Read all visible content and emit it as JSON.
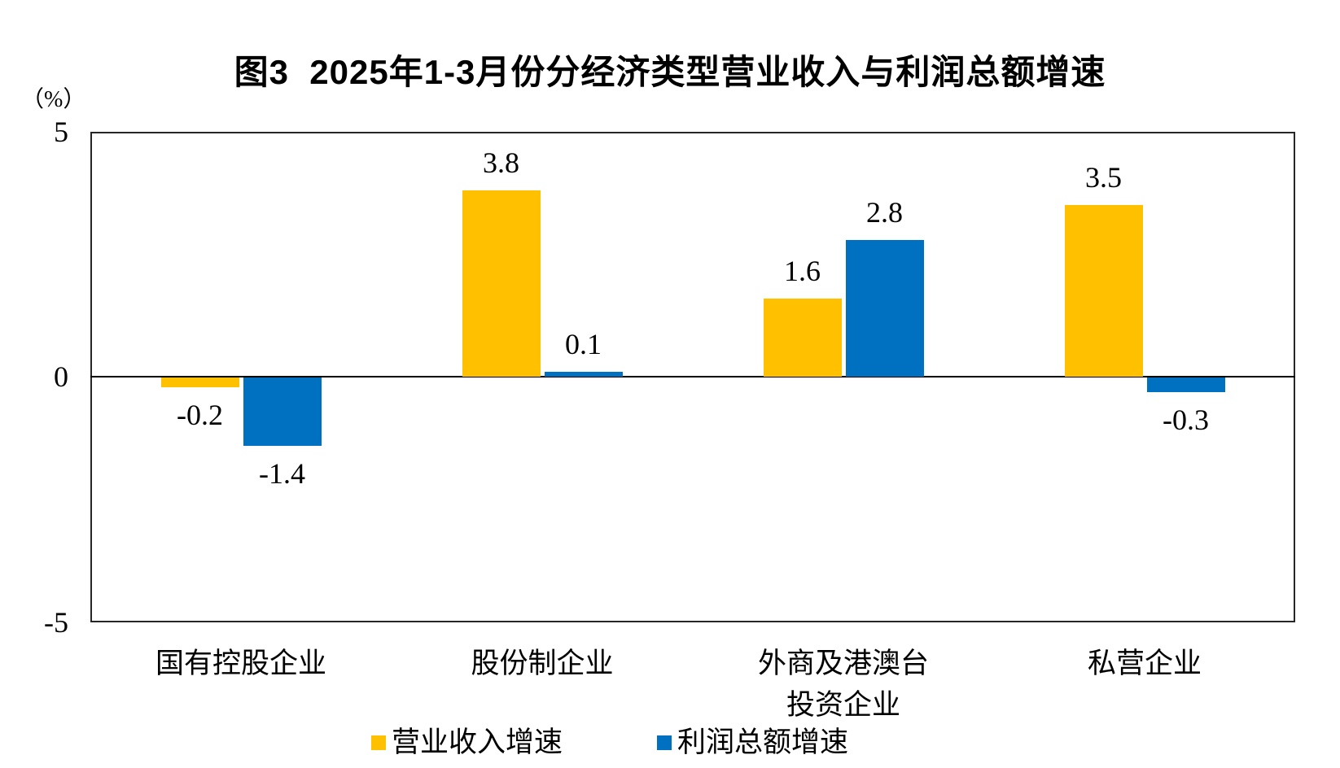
{
  "title": "图3  2025年1-3月份分经济类型营业收入与利润总额增速",
  "axis": {
    "unit_label": "（%）",
    "y_ticks": [
      "5",
      "0",
      "-5"
    ]
  },
  "chart_data": {
    "type": "bar",
    "title": "图3 2025年1-3月份分经济类型营业收入与利润总额增速",
    "categories": [
      "国有控股企业",
      "股份制企业",
      "外商及港澳台\n投资企业",
      "私营企业"
    ],
    "series": [
      {
        "name": "营业收入增速",
        "color": "#FFC000",
        "values": [
          -0.2,
          3.8,
          1.6,
          3.5
        ]
      },
      {
        "name": "利润总额增速",
        "color": "#0070C0",
        "values": [
          -1.4,
          0.1,
          2.8,
          -0.3
        ]
      }
    ],
    "ylabel": "（%）",
    "ylim": [
      -5,
      5
    ],
    "grid": false,
    "legend_position": "bottom",
    "value_labels": "outside-end, one decimal"
  }
}
